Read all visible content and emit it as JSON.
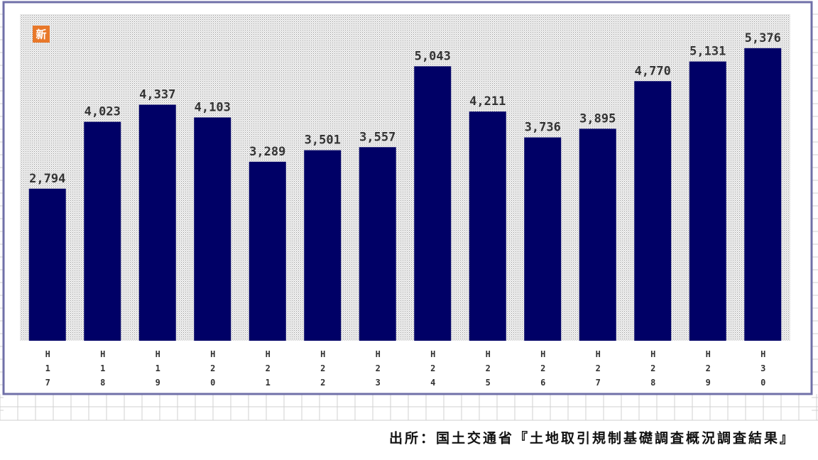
{
  "chart_data": {
    "type": "bar",
    "badge": "新",
    "categories": [
      "H17",
      "H18",
      "H19",
      "H20",
      "H21",
      "H22",
      "H23",
      "H24",
      "H25",
      "H26",
      "H27",
      "H28",
      "H29",
      "H30"
    ],
    "values": [
      2794,
      4023,
      4337,
      4103,
      3289,
      3501,
      3557,
      5043,
      4211,
      3736,
      3895,
      4770,
      5131,
      5376
    ],
    "value_labels": [
      "2,794",
      "4,023",
      "4,337",
      "4,103",
      "3,289",
      "3,501",
      "3,557",
      "5,043",
      "4,211",
      "3,736",
      "3,895",
      "4,770",
      "5,131",
      "5,376"
    ],
    "color": "#000066",
    "ylim": [
      0,
      6000
    ],
    "source": "出所：国土交通省『土地取引規制基礎調査概況調査結果』"
  }
}
